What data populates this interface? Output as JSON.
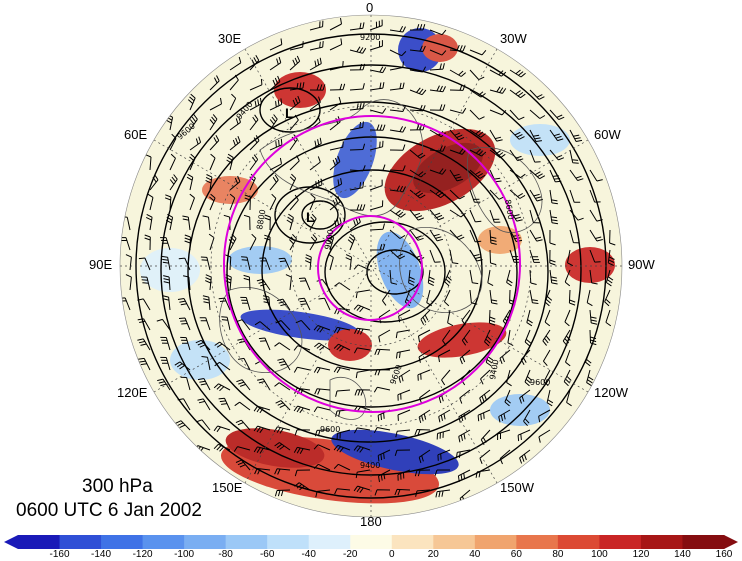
{
  "map": {
    "longitude_labels": [
      {
        "id": "0",
        "text": "0"
      },
      {
        "id": "30w",
        "text": "30W"
      },
      {
        "id": "60w",
        "text": "60W"
      },
      {
        "id": "90w",
        "text": "90W"
      },
      {
        "id": "120w",
        "text": "120W"
      },
      {
        "id": "150w",
        "text": "150W"
      },
      {
        "id": "180",
        "text": "180"
      },
      {
        "id": "150e",
        "text": "150E"
      },
      {
        "id": "120e",
        "text": "120E"
      },
      {
        "id": "90e",
        "text": "90E"
      },
      {
        "id": "60e",
        "text": "60E"
      },
      {
        "id": "30e",
        "text": "30E"
      }
    ],
    "contour_labels": [
      "9600",
      "9400",
      "8800",
      "9000",
      "9200",
      "9600",
      "9600",
      "9400",
      "8600",
      "9400",
      "9600"
    ],
    "high_low_markers": [
      "L",
      "L"
    ],
    "colors": {
      "land_lines": "#555555",
      "contours": "#000000",
      "jet_circle": "#dd00dd",
      "barbs": "#000000"
    }
  },
  "info": {
    "level": "300 hPa",
    "time": "0600 UTC 6 Jan 2002"
  },
  "colorbar": {
    "tick_labels": [
      "-160",
      "-140",
      "-120",
      "-100",
      "-80",
      "-60",
      "-40",
      "-20",
      "0",
      "20",
      "40",
      "60",
      "80",
      "100",
      "120",
      "140",
      "160"
    ],
    "colors": [
      "#1a1ab8",
      "#2f4fd6",
      "#3f72e6",
      "#5a92ee",
      "#7aaef2",
      "#9bc8f6",
      "#bfe0fa",
      "#def0fc",
      "#fdfbe6",
      "#fbe4bf",
      "#f6c796",
      "#f0a46e",
      "#e8764c",
      "#dc4a34",
      "#c92525",
      "#a71616",
      "#850d10"
    ]
  }
}
